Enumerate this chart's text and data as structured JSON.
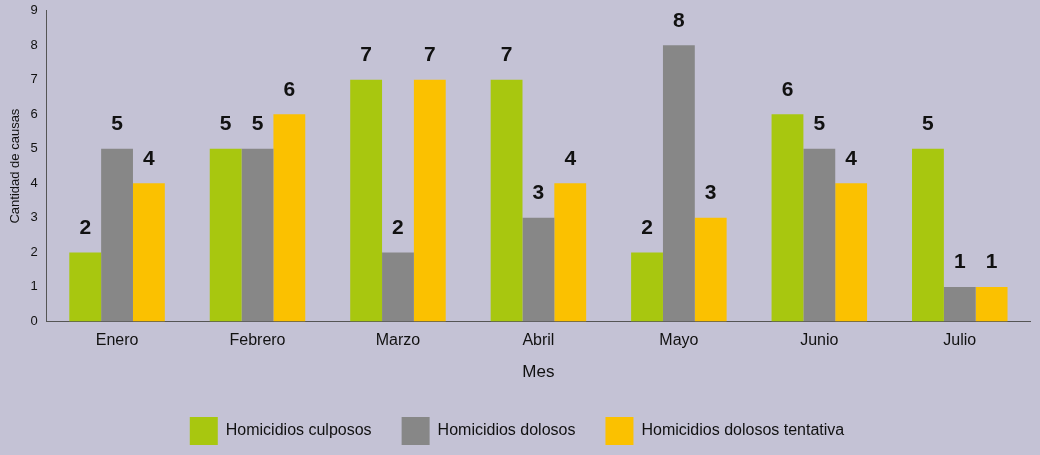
{
  "chart_data": {
    "type": "bar",
    "xlabel": "Mes",
    "ylabel": "Cantidad de causas",
    "categories": [
      "Enero",
      "Febrero",
      "Marzo",
      "Abril",
      "Mayo",
      "Junio",
      "Julio"
    ],
    "series": [
      {
        "name": "Homicidios culposos",
        "color": "#a8c70f",
        "values": [
          2,
          5,
          7,
          7,
          2,
          6,
          5
        ]
      },
      {
        "name": "Homicidios dolosos",
        "color": "#878787",
        "values": [
          5,
          5,
          2,
          3,
          8,
          5,
          1
        ]
      },
      {
        "name": "Homicidios dolosos tentativa",
        "color": "#fbc100",
        "values": [
          4,
          6,
          7,
          4,
          3,
          4,
          1
        ]
      }
    ],
    "ylim": [
      0,
      9
    ],
    "yticks": [
      0,
      1,
      2,
      3,
      4,
      5,
      6,
      7,
      8,
      9
    ],
    "grid": false,
    "legend": "bottom",
    "data_labels": true
  }
}
